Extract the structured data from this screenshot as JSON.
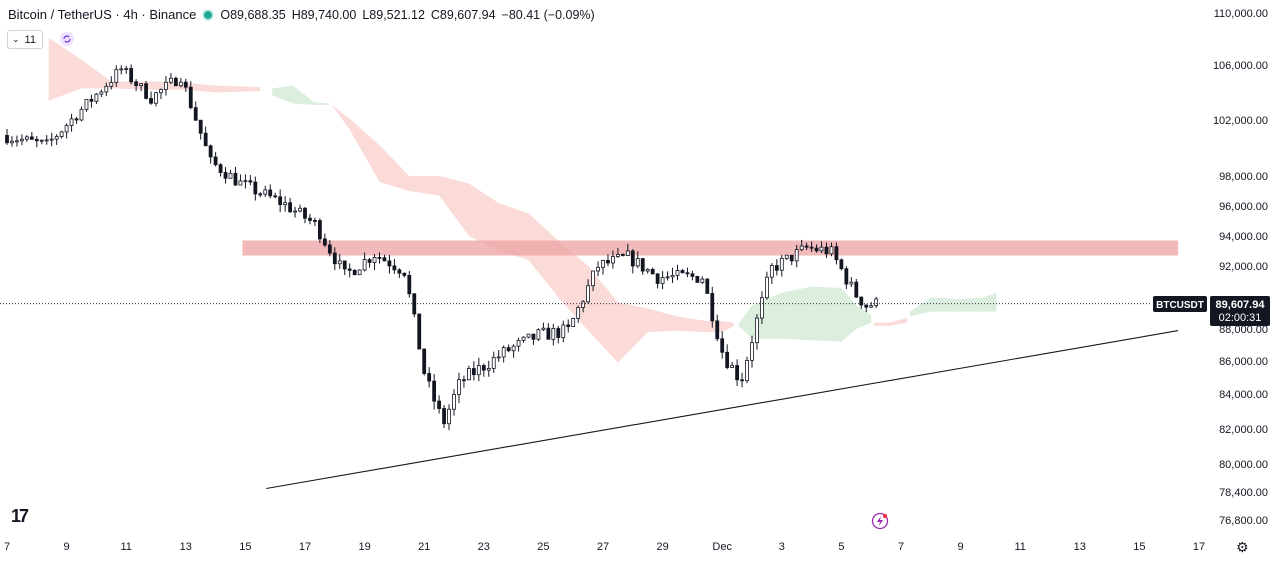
{
  "legend": {
    "symbol": "Bitcoin / TetherUS · 4h · Binance",
    "open": "O89,688.35",
    "high": "H89,740.00",
    "low": "L89,521.12",
    "close": "C89,607.94",
    "change": "−80.41 (−0.09%)"
  },
  "indicator_badge": "11",
  "logo_text": "17",
  "price_tag": {
    "label": "BTCUSDT",
    "price": "89,607.94",
    "countdown": "02:00:31"
  },
  "colors": {
    "up": "#131722",
    "down": "#131722",
    "cloud_bear": "#f9d5d1",
    "cloud_bull": "#d6ecd9",
    "resistance_zone": "#eea7a7",
    "trendline": "#131722",
    "live_dot": "#22ab94"
  },
  "chart_data": {
    "type": "candlestick",
    "title": "Bitcoin / TetherUS · 4h · Binance",
    "ylim": [
      76000,
      110500
    ],
    "y_ticks": [
      {
        "v": 110000,
        "label": "110,000.00"
      },
      {
        "v": 106000,
        "label": "106,000.00"
      },
      {
        "v": 102000,
        "label": "102,000.00"
      },
      {
        "v": 98000,
        "label": "98,000.00"
      },
      {
        "v": 96000,
        "label": "96,000.00"
      },
      {
        "v": 94000,
        "label": "94,000.00"
      },
      {
        "v": 92000,
        "label": "92,000.00"
      },
      {
        "v": 88000,
        "label": "88,000.00"
      },
      {
        "v": 86000,
        "label": "86,000.00"
      },
      {
        "v": 84000,
        "label": "84,000.00"
      },
      {
        "v": 82000,
        "label": "82,000.00"
      },
      {
        "v": 80000,
        "label": "80,000.00"
      },
      {
        "v": 78400,
        "label": "78,400.00"
      },
      {
        "v": 76800,
        "label": "76,800.00"
      }
    ],
    "x_ticks": [
      "7",
      "9",
      "11",
      "13",
      "15",
      "17",
      "19",
      "21",
      "23",
      "25",
      "27",
      "29",
      "Dec",
      "3",
      "5",
      "7",
      "9",
      "11",
      "13",
      "15",
      "17"
    ],
    "x_tick_days": [
      7,
      9,
      11,
      13,
      15,
      17,
      19,
      21,
      23,
      25,
      27,
      29,
      31,
      33,
      35,
      37,
      39,
      41,
      43,
      45,
      47
    ],
    "last_price": 89607.94,
    "resistance_zone": {
      "from_day": 14.9,
      "to_day": 46.3,
      "low": 92700,
      "high": 93700
    },
    "trendline": {
      "start": {
        "day": 15.7,
        "price": 78600
      },
      "end": {
        "day": 46.3,
        "price": 87900
      }
    },
    "path_anchors": [
      [
        7,
        100900
      ],
      [
        8.5,
        100200
      ],
      [
        10,
        103500
      ],
      [
        11,
        105700
      ],
      [
        12,
        103600
      ],
      [
        13,
        105200
      ],
      [
        14,
        99000
      ],
      [
        15,
        97500
      ],
      [
        16.5,
        96100
      ],
      [
        17.5,
        94800
      ],
      [
        18.5,
        91400
      ],
      [
        19.5,
        92800
      ],
      [
        20.5,
        91700
      ],
      [
        21.2,
        85000
      ],
      [
        21.8,
        82300
      ],
      [
        22.4,
        84800
      ],
      [
        24,
        86700
      ],
      [
        25,
        87600
      ],
      [
        26,
        87900
      ],
      [
        27,
        92000
      ],
      [
        28,
        92600
      ],
      [
        29,
        91300
      ],
      [
        30.5,
        91300
      ],
      [
        31.2,
        86400
      ],
      [
        31.8,
        84800
      ],
      [
        32.8,
        91800
      ],
      [
        34,
        93200
      ],
      [
        34.8,
        93000
      ],
      [
        35.6,
        90300
      ],
      [
        36,
        89500
      ],
      [
        36.25,
        89600
      ]
    ],
    "cloud": [
      {
        "color": "bear",
        "points": [
          [
            8.4,
            108100,
            103400
          ],
          [
            9.5,
            106400,
            104300
          ],
          [
            10.5,
            104800,
            104300
          ],
          [
            12,
            104800,
            104200
          ],
          [
            13,
            104700,
            104200
          ],
          [
            14,
            104500,
            104000
          ],
          [
            15.5,
            104400,
            104100
          ]
        ]
      },
      {
        "color": "bull",
        "points": [
          [
            15.9,
            104300,
            103800
          ],
          [
            16.6,
            104500,
            103200
          ],
          [
            17.3,
            103300,
            103100
          ],
          [
            17.8,
            103200,
            103100
          ]
        ]
      },
      {
        "color": "bear",
        "points": [
          [
            17.9,
            103100,
            103100
          ],
          [
            18.5,
            102100,
            101300
          ],
          [
            19.5,
            100200,
            97600
          ],
          [
            20.5,
            98000,
            97000
          ],
          [
            21.5,
            98000,
            96700
          ],
          [
            22.5,
            97500,
            94000
          ],
          [
            23.5,
            96200,
            93000
          ],
          [
            24.5,
            95500,
            92400
          ],
          [
            25.5,
            93700,
            90000
          ],
          [
            26.5,
            92000,
            87900
          ],
          [
            27.5,
            89700,
            85900
          ],
          [
            28.5,
            89300,
            87800
          ],
          [
            29.5,
            88800,
            87900
          ],
          [
            30.5,
            88500,
            87800
          ],
          [
            31,
            88500,
            87800
          ],
          [
            31.4,
            88400,
            88200
          ]
        ]
      },
      {
        "color": "bull",
        "points": [
          [
            31.5,
            88200,
            88300
          ],
          [
            32,
            89500,
            87400
          ],
          [
            33,
            90300,
            87400
          ],
          [
            34,
            90700,
            87300
          ],
          [
            35,
            90600,
            87200
          ],
          [
            35.5,
            89500,
            88000
          ],
          [
            36,
            88900,
            88400
          ]
        ]
      },
      {
        "color": "bear",
        "points": [
          [
            36.1,
            88400,
            88200
          ],
          [
            36.6,
            88400,
            88200
          ],
          [
            37.2,
            88700,
            88400
          ]
        ]
      },
      {
        "color": "bull",
        "points": [
          [
            37.3,
            89100,
            88800
          ],
          [
            38,
            90000,
            89100
          ],
          [
            39,
            89900,
            89100
          ],
          [
            39.8,
            90000,
            89100
          ],
          [
            40.2,
            90300,
            89100
          ]
        ]
      }
    ]
  }
}
